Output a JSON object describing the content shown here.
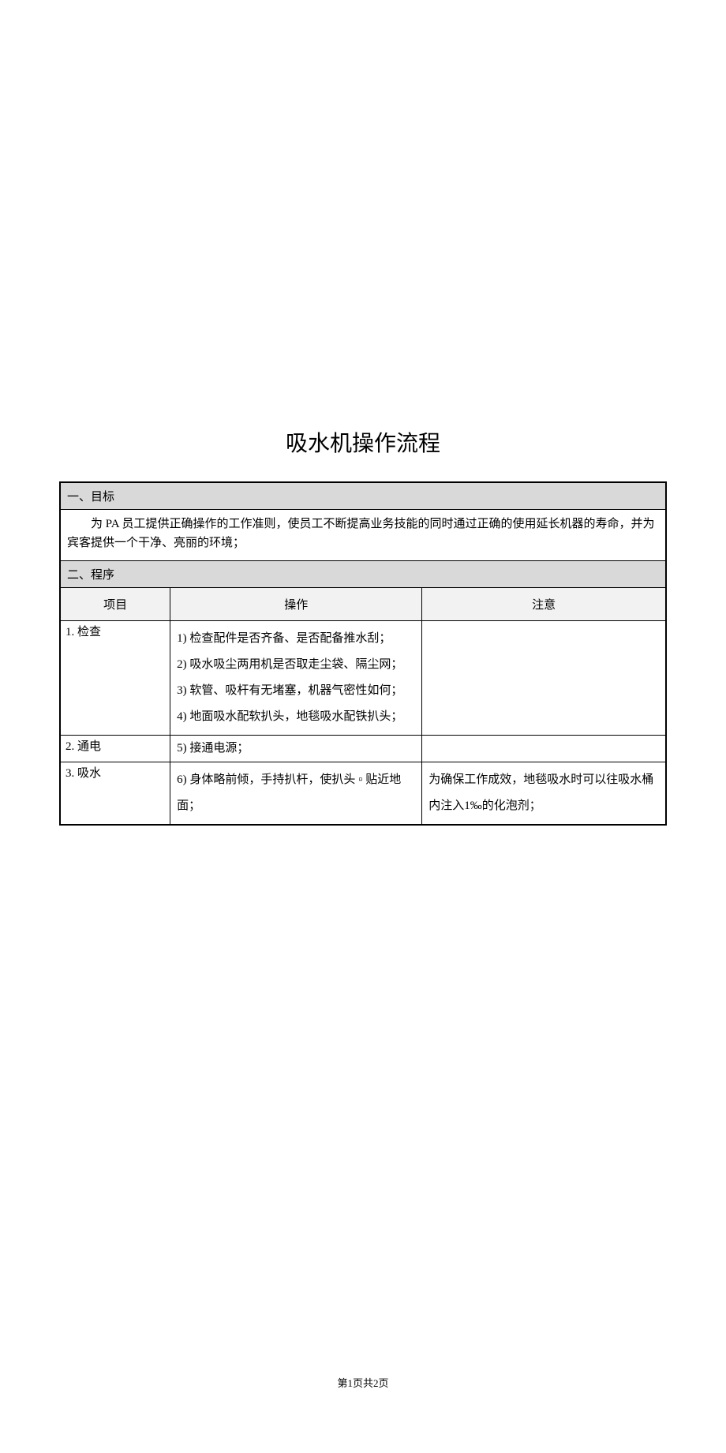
{
  "title": "吸水机操作流程",
  "section1": {
    "heading": "一、目标",
    "body": "为 PA 员工提供正确操作的工作准则，使员工不断提高业务技能的同时通过正确的使用延长机器的寿命，并为宾客提供一个干净、亮丽的环境；"
  },
  "section2": {
    "heading": "二、程序",
    "columns": {
      "item": "项目",
      "operation": "操作",
      "note": "注意"
    },
    "rows": [
      {
        "item": "1. 检查",
        "operation": "1) 检查配件是否齐备、是否配备推水刮；\n2) 吸水吸尘两用机是否取走尘袋、隔尘网；\n3) 软管、吸杆有无堵塞，机器气密性如何；\n4) 地面吸水配软扒头，地毯吸水配铁扒头；",
        "note": ""
      },
      {
        "item": "2. 通电",
        "operation": "5) 接通电源；",
        "note": ""
      },
      {
        "item": "3. 吸水",
        "operation": "6) 身体略前倾，手持扒杆，使扒头 ▫ 贴近地面；",
        "note": "为确保工作成效，地毯吸水时可以往吸水桶内注入1‰的化泡剂；"
      }
    ]
  },
  "footer": "第1页共2页"
}
